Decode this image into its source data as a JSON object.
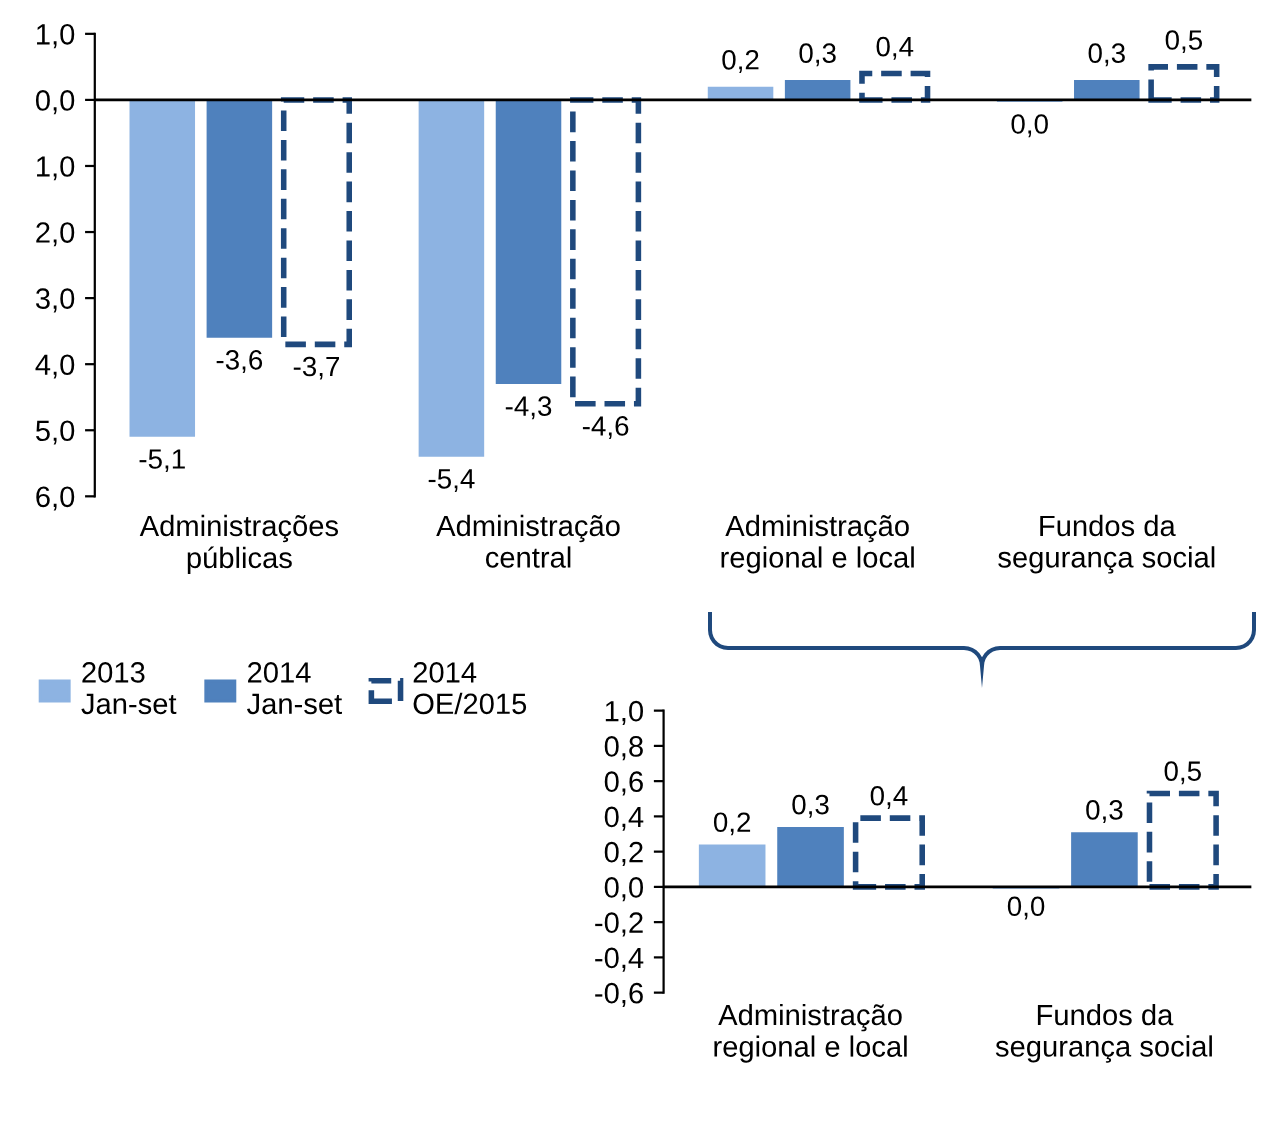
{
  "chart_data": [
    {
      "type": "bar",
      "categories": [
        "Administrações\npúblicas",
        "Administração\ncentral",
        "Administração\nregional e local",
        "Fundos da\nsegurança social"
      ],
      "series": [
        {
          "name": "2013\nJan-set",
          "color": "#8db3e2",
          "values": [
            -5.1,
            -5.4,
            0.2,
            -0.03
          ],
          "value_labels": [
            "-5,1",
            "-5,4",
            "0,2",
            "0,0"
          ]
        },
        {
          "name": "2014\nJan-set",
          "color": "#4f81bd",
          "values": [
            -3.6,
            -4.3,
            0.3,
            0.3
          ],
          "value_labels": [
            "-3,6",
            "-4,3",
            "0,3",
            "0,3"
          ]
        },
        {
          "name": "2014\nOE/2015",
          "color": "#1f497d",
          "line_style": "dashed",
          "values": [
            -3.7,
            -4.6,
            0.4,
            0.5
          ],
          "value_labels": [
            "-3,7",
            "-4,6",
            "0,4",
            "0,5"
          ]
        }
      ],
      "ylim": [
        -6,
        1
      ],
      "yticks": [
        {
          "value": 1,
          "label": "1,0"
        },
        {
          "value": 0,
          "label": "0,0"
        },
        {
          "value": -1,
          "label": "1,0"
        },
        {
          "value": -2,
          "label": "2,0"
        },
        {
          "value": -3,
          "label": "3,0"
        },
        {
          "value": -4,
          "label": "4,0"
        },
        {
          "value": -5,
          "label": "5,0"
        },
        {
          "value": -6,
          "label": "6,0"
        }
      ],
      "legend": "bottom left",
      "grid": false,
      "ref_lines": [
        {
          "axis": "y",
          "value": 0,
          "color": "#000000"
        }
      ]
    },
    {
      "type": "bar",
      "categories": [
        "Administração\nregional e local",
        "Fundos da\nsegurança social"
      ],
      "series": [
        {
          "color": "#8db3e2",
          "values": [
            0.24,
            -0.01
          ],
          "value_labels": [
            "0,2",
            "0,0"
          ]
        },
        {
          "color": "#4f81bd",
          "values": [
            0.34,
            0.31
          ],
          "value_labels": [
            "0,3",
            "0,3"
          ]
        },
        {
          "color": "#1f497d",
          "line_style": "dashed",
          "values": [
            0.39,
            0.53
          ],
          "value_labels": [
            "0,4",
            "0,5"
          ]
        }
      ],
      "ylim": [
        -0.6,
        1
      ],
      "yticks": [
        {
          "value": 1,
          "label": "1,0"
        },
        {
          "value": 0.8,
          "label": "0,8"
        },
        {
          "value": 0.6,
          "label": "0,6"
        },
        {
          "value": 0.4,
          "label": "0,4"
        },
        {
          "value": 0.2,
          "label": "0,2"
        },
        {
          "value": 0,
          "label": "0,0"
        },
        {
          "value": -0.2,
          "label": "-0,2"
        },
        {
          "value": -0.4,
          "label": "-0,4"
        },
        {
          "value": -0.6,
          "label": "-0,6"
        }
      ],
      "grid": false,
      "ref_lines": [
        {
          "axis": "y",
          "value": 0,
          "color": "#000000"
        }
      ]
    }
  ]
}
